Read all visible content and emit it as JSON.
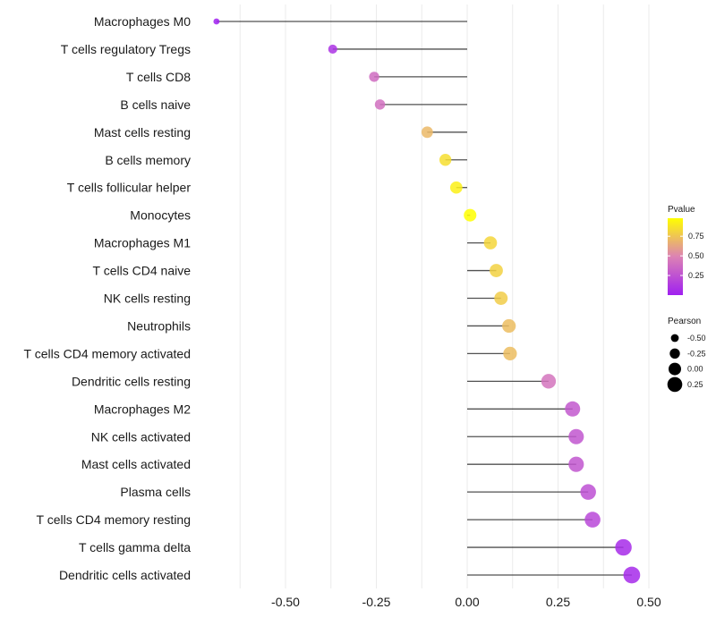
{
  "chart_data": {
    "type": "lollipop",
    "title": "",
    "xlabel": "",
    "ylabel": "",
    "xlim": [
      -0.75,
      0.55
    ],
    "x_ticks": [
      -0.5,
      -0.25,
      0.0,
      0.25,
      0.5
    ],
    "x_tick_labels": [
      "-0.50",
      "-0.25",
      "0.00",
      "0.25",
      "0.50"
    ],
    "grid": true,
    "categories": [
      "Macrophages M0",
      "T cells regulatory  Tregs ",
      "T cells CD8",
      "B cells naive",
      "Mast cells resting",
      "B cells memory",
      "T cells follicular helper",
      "Monocytes",
      "Macrophages M1",
      "T cells CD4 naive",
      "NK cells resting",
      "Neutrophils",
      "T cells CD4 memory activated",
      "Dendritic cells resting",
      "Macrophages M2",
      "NK cells activated",
      "Mast cells activated",
      "Plasma cells",
      "T cells CD4 memory resting",
      "T cells gamma delta",
      "Dendritic cells activated"
    ],
    "values": [
      -0.69,
      -0.37,
      -0.256,
      -0.24,
      -0.11,
      -0.06,
      -0.03,
      0.008,
      0.064,
      0.08,
      0.093,
      0.115,
      0.118,
      0.224,
      0.29,
      0.3,
      0.3,
      0.333,
      0.345,
      0.43,
      0.453
    ],
    "pvalues": [
      0.0,
      0.1,
      0.38,
      0.4,
      0.7,
      0.85,
      0.92,
      0.98,
      0.82,
      0.8,
      0.78,
      0.72,
      0.72,
      0.42,
      0.28,
      0.27,
      0.27,
      0.24,
      0.2,
      0.06,
      0.05
    ],
    "legend": {
      "placement": "right",
      "color": {
        "title": "Pvalue",
        "ticks": [
          0.25,
          0.5,
          0.75
        ],
        "tick_labels": [
          "0.25",
          "0.50",
          "0.75"
        ],
        "range": [
          0.0,
          0.98
        ],
        "low_color": "#a020f0",
        "mid_color": "#dc82b4",
        "high_color": "#ffff00"
      },
      "size": {
        "title": "Pearson",
        "values": [
          -0.5,
          -0.25,
          0.0,
          0.25
        ],
        "labels": [
          "-0.50",
          "-0.25",
          "0.00",
          "0.25"
        ]
      }
    }
  }
}
